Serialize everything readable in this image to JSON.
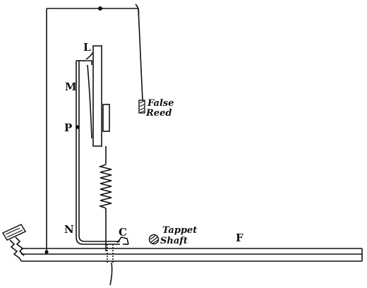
{
  "diagram": {
    "labels": {
      "L": "L",
      "M": "M",
      "P": "P",
      "N": "N",
      "C": "C",
      "F": "F",
      "false_reed_line1": "False",
      "false_reed_line2": "Reed",
      "tappet_line1": "Tappet",
      "tappet_line2": "Shaft"
    },
    "colors": {
      "ink": "#111111",
      "background": "#ffffff"
    }
  }
}
